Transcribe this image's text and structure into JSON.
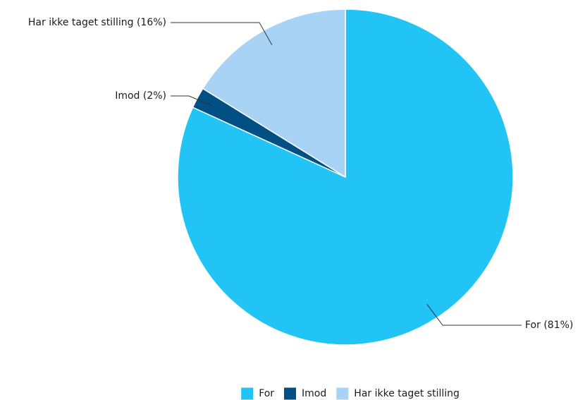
{
  "chart_data": {
    "type": "pie",
    "title": "",
    "categories": [
      "For",
      "Imod",
      "Har ikke taget stilling"
    ],
    "values": [
      81,
      2,
      16
    ],
    "slice_labels": [
      "For (81%)",
      "Imod (2%)",
      "Har ikke taget stilling (16%)"
    ],
    "colors": [
      "#22c4f5",
      "#005086",
      "#a8d3f4"
    ],
    "start": "12 o'clock",
    "direction": "clockwise",
    "legend_position": "bottom-center",
    "legend": [
      {
        "label": "For",
        "color": "#22c4f5"
      },
      {
        "label": "Imod",
        "color": "#005086"
      },
      {
        "label": "Har ikke taget stilling",
        "color": "#a8d3f4"
      }
    ]
  }
}
